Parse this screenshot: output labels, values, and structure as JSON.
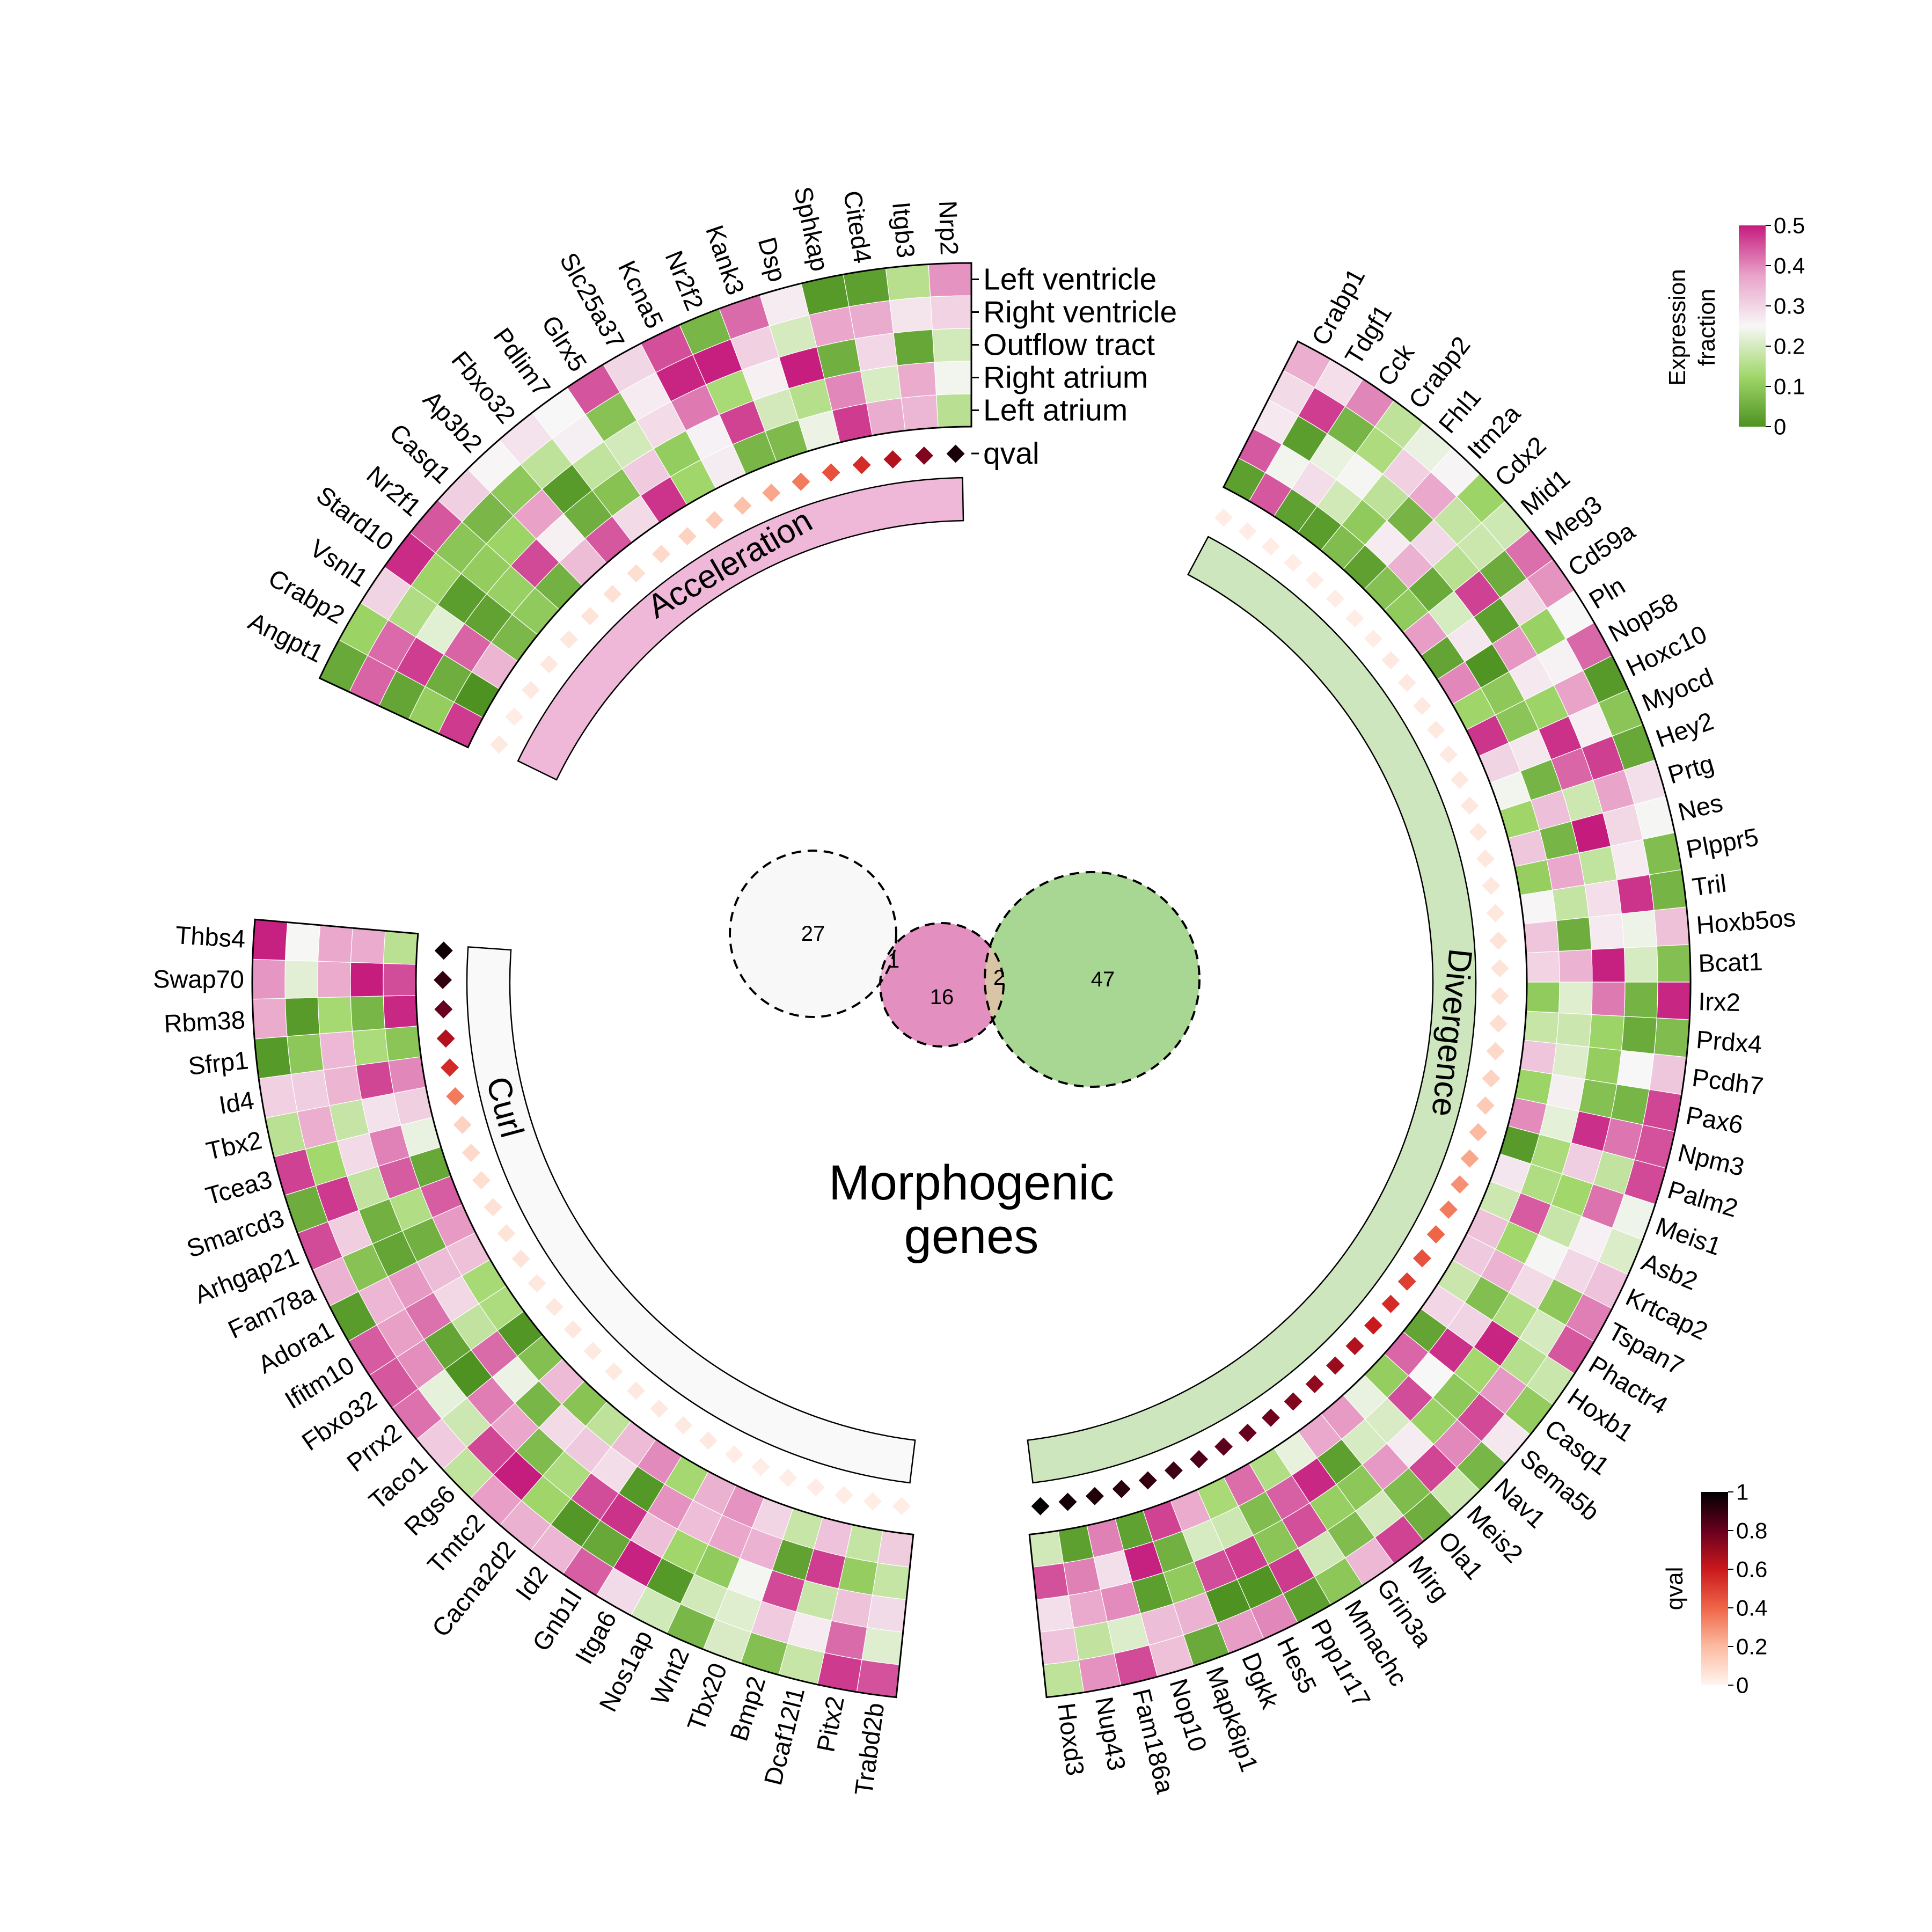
{
  "title_line1": "Morphogenic",
  "title_line2": "genes",
  "rows": [
    "Left ventricle",
    "Right ventricle",
    "Outflow tract",
    "Right atrium",
    "Left atrium"
  ],
  "qval_row_label": "qval",
  "chart_data": {
    "type": "heatmap",
    "layout": "circular",
    "title": "Morphogenic genes",
    "rows": [
      "Left ventricle",
      "Right ventricle",
      "Outflow tract",
      "Right atrium",
      "Left atrium"
    ],
    "color_scale": {
      "name": "Expression fraction",
      "title_line1": "Expression",
      "title_line2": "fraction",
      "range": [
        0,
        0.5
      ],
      "ticks": [
        "0",
        "0.1",
        "0.2",
        "0.3",
        "0.4",
        "0.5"
      ],
      "colors": [
        "#4d9221",
        "#a1d76a",
        "#f7f7f7",
        "#e9a3c9",
        "#c51b7d"
      ]
    },
    "qval_scale": {
      "name": "qval",
      "range": [
        0,
        1
      ],
      "ticks": [
        "0",
        "0.2",
        "0.4",
        "0.6",
        "0.8",
        "1"
      ],
      "colors": [
        "#fff5f0",
        "#fcbba1",
        "#ef6548",
        "#cb181d",
        "#67001f",
        "#000000"
      ]
    },
    "sectors": [
      {
        "name": "Acceleration",
        "color": "#efb7d8",
        "genes": [
          "Angpt1",
          "Crabp2",
          "Vsnl1",
          "Stard10",
          "Nr2f1",
          "Casq1",
          "Ap3b2",
          "Fbxo32",
          "Pdlim7",
          "Glrx5",
          "Slc25a37",
          "Kcna5",
          "Nr2f2",
          "Kank3",
          "Dsp",
          "Sphkap",
          "Cited4",
          "Itgb3",
          "Nrp2"
        ],
        "qval": [
          0.04,
          0.03,
          0.04,
          0.05,
          0.05,
          0.06,
          0.07,
          0.08,
          0.1,
          0.12,
          0.14,
          0.18,
          0.25,
          0.35,
          0.45,
          0.55,
          0.65,
          0.75,
          0.95
        ]
      },
      {
        "name": "Divergence",
        "color": "#cde6bd",
        "genes": [
          "Crabp1",
          "Tdgf1",
          "Cck",
          "Crabp2",
          "Fhl1",
          "Itm2a",
          "Cdx2",
          "Mid1",
          "Meg3",
          "Cd59a",
          "Pln",
          "Nop58",
          "Hoxc10",
          "Myocd",
          "Hey2",
          "Prtg",
          "Nes",
          "Plppr5",
          "Tril",
          "Hoxb5os",
          "Bcat1",
          "Irx2",
          "Prdx4",
          "Pcdh7",
          "Pax6",
          "Npm3",
          "Palm2",
          "Meis1",
          "Asb2",
          "Krtcap2",
          "Tspan7",
          "Phactr4",
          "Hoxb1",
          "Casq1",
          "Sema5b",
          "Nav1",
          "Meis2",
          "Ola1",
          "Mirg",
          "Grin3a",
          "Mmachc",
          "Ppp1r17",
          "Hes5",
          "Dgkk",
          "Mapk8ip1",
          "Nop10",
          "Fam186a",
          "Nup43",
          "Hoxd3"
        ],
        "qval": [
          0.03,
          0.03,
          0.03,
          0.03,
          0.03,
          0.03,
          0.03,
          0.03,
          0.04,
          0.04,
          0.04,
          0.04,
          0.04,
          0.04,
          0.05,
          0.05,
          0.05,
          0.05,
          0.05,
          0.06,
          0.06,
          0.07,
          0.08,
          0.1,
          0.12,
          0.15,
          0.2,
          0.25,
          0.3,
          0.35,
          0.4,
          0.45,
          0.5,
          0.55,
          0.6,
          0.65,
          0.7,
          0.72,
          0.75,
          0.78,
          0.8,
          0.82,
          0.85,
          0.88,
          0.9,
          0.92,
          0.94,
          0.96,
          0.99
        ]
      },
      {
        "name": "Curl",
        "color": "#f9f9f9",
        "genes": [
          "Trabd2b",
          "Pitx2",
          "Dcaf12l1",
          "Bmp2",
          "Tbx20",
          "Wnt2",
          "Nos1ap",
          "Itga6",
          "Gnb1l",
          "Id2",
          "Cacna2d2",
          "Tmtc2",
          "Rgs6",
          "Taco1",
          "Prrx2",
          "Fbxo32",
          "Ifitm10",
          "Adora1",
          "Fam78a",
          "Arhgap21",
          "Smarcd3",
          "Tcea3",
          "Tbx2",
          "Id4",
          "Sfrp1",
          "Rbm38",
          "Swap70",
          "Thbs4"
        ],
        "qval": [
          0.03,
          0.03,
          0.03,
          0.03,
          0.03,
          0.03,
          0.03,
          0.04,
          0.04,
          0.04,
          0.04,
          0.04,
          0.04,
          0.05,
          0.05,
          0.05,
          0.06,
          0.06,
          0.07,
          0.08,
          0.1,
          0.12,
          0.35,
          0.55,
          0.65,
          0.8,
          0.9,
          0.97
        ]
      }
    ],
    "venn": [
      {
        "label": "27",
        "color": "#f8f8f8"
      },
      {
        "label": "16",
        "color": "#e38fc0"
      },
      {
        "label": "47",
        "color": "#a8d693"
      },
      {
        "label": "1",
        "color": "#eeb8d6"
      },
      {
        "label": "2",
        "color": "#d9c4a6"
      }
    ]
  }
}
